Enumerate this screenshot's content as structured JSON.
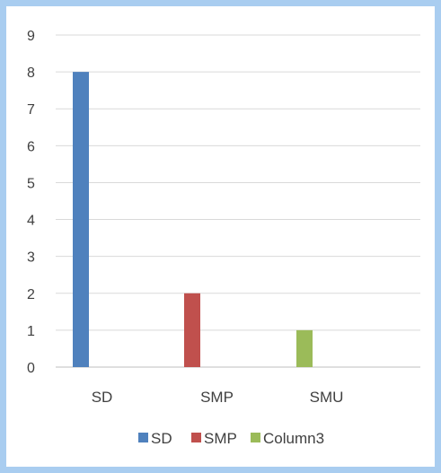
{
  "chart_data": {
    "type": "bar",
    "categories": [
      "SD",
      "SMP",
      "SMU"
    ],
    "series": [
      {
        "name": "SD",
        "values": [
          8,
          null,
          null
        ],
        "color": "#4f81bd"
      },
      {
        "name": "SMP",
        "values": [
          null,
          2,
          null
        ],
        "color": "#c0504d"
      },
      {
        "name": "Column3",
        "values": [
          null,
          null,
          1
        ],
        "color": "#9bbb59"
      }
    ],
    "y_ticks": [
      "0",
      "1",
      "2",
      "3",
      "4",
      "5",
      "6",
      "7",
      "8",
      "9"
    ],
    "ylim": [
      0,
      9
    ],
    "grid": true,
    "legend_position": "bottom",
    "title": "",
    "xlabel": "",
    "ylabel": ""
  }
}
